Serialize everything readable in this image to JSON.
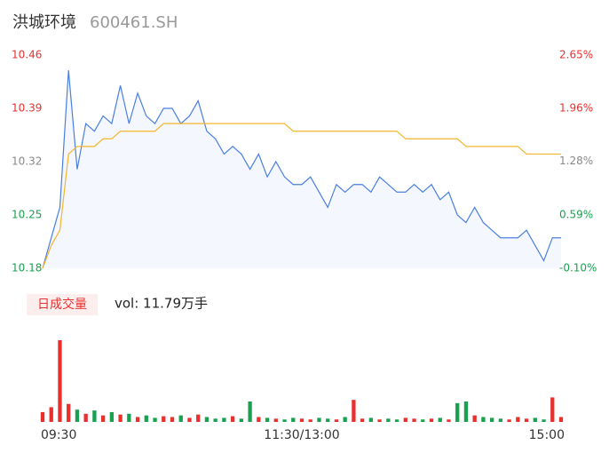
{
  "chart_data": {
    "type": "intraday",
    "title": "洪城环境",
    "subtitle": "600461.SH",
    "volume_label": "日成交量",
    "volume_text": "vol: 11.79万手",
    "x": [
      0,
      4,
      8,
      12,
      16,
      20,
      24,
      28,
      32,
      36,
      40,
      44,
      48,
      52,
      56,
      60,
      64,
      68,
      72,
      76,
      80,
      84,
      88,
      92,
      96,
      100,
      104,
      108,
      112,
      116,
      120,
      124,
      128,
      132,
      136,
      140,
      144,
      148,
      152,
      156,
      160,
      164,
      168,
      172,
      176,
      180,
      184,
      188,
      192,
      196,
      200,
      204,
      208,
      212,
      216,
      220,
      224,
      228,
      232,
      236,
      240
    ],
    "xlim": [
      0,
      240
    ],
    "xticks": [
      {
        "value": 0,
        "label": "09:30"
      },
      {
        "value": 120,
        "label": "11:30/13:00"
      },
      {
        "value": 240,
        "label": "15:00"
      }
    ],
    "ylim": [
      10.18,
      10.46
    ],
    "yticks": [
      10.46,
      10.39,
      10.32,
      10.25,
      10.18
    ],
    "ytick_colors": [
      "#e8312f",
      "#e8312f",
      "#888888",
      "#19a150",
      "#19a150"
    ],
    "y2lim": [
      -0.1,
      2.65
    ],
    "y2ticks": [
      {
        "value": 2.65,
        "label": "2.65%"
      },
      {
        "value": 1.96,
        "label": "1.96%"
      },
      {
        "value": 1.28,
        "label": "1.28%"
      },
      {
        "value": 0.59,
        "label": "0.59%"
      },
      {
        "value": -0.1,
        "label": "-0.10%"
      }
    ],
    "series": [
      {
        "color": "#4a7fe0",
        "fill": "#f4f7fd",
        "values": [
          10.18,
          10.22,
          10.26,
          10.44,
          10.31,
          10.37,
          10.36,
          10.38,
          10.37,
          10.42,
          10.37,
          10.41,
          10.38,
          10.37,
          10.39,
          10.39,
          10.37,
          10.38,
          10.4,
          10.36,
          10.35,
          10.33,
          10.34,
          10.33,
          10.31,
          10.33,
          10.3,
          10.32,
          10.3,
          10.29,
          10.29,
          10.3,
          10.28,
          10.26,
          10.29,
          10.28,
          10.29,
          10.29,
          10.28,
          10.3,
          10.29,
          10.28,
          10.28,
          10.29,
          10.28,
          10.29,
          10.27,
          10.28,
          10.25,
          10.24,
          10.26,
          10.24,
          10.23,
          10.22,
          10.22,
          10.22,
          10.23,
          10.21,
          10.19,
          10.22,
          10.22
        ]
      },
      {
        "color": "#f5b52c",
        "values": [
          10.18,
          10.21,
          10.23,
          10.33,
          10.34,
          10.34,
          10.34,
          10.35,
          10.35,
          10.36,
          10.36,
          10.36,
          10.36,
          10.36,
          10.37,
          10.37,
          10.37,
          10.37,
          10.37,
          10.37,
          10.37,
          10.37,
          10.37,
          10.37,
          10.37,
          10.37,
          10.37,
          10.37,
          10.37,
          10.36,
          10.36,
          10.36,
          10.36,
          10.36,
          10.36,
          10.36,
          10.36,
          10.36,
          10.36,
          10.36,
          10.36,
          10.36,
          10.35,
          10.35,
          10.35,
          10.35,
          10.35,
          10.35,
          10.35,
          10.34,
          10.34,
          10.34,
          10.34,
          10.34,
          10.34,
          10.34,
          10.33,
          10.33,
          10.33,
          10.33,
          10.33
        ]
      }
    ],
    "volume": {
      "up_color": "#e8312f",
      "down_color": "#19a150",
      "values": [
        12,
        18,
        100,
        22,
        15,
        10,
        14,
        8,
        12,
        9,
        10,
        6,
        8,
        5,
        7,
        6,
        8,
        5,
        9,
        6,
        4,
        5,
        7,
        4,
        25,
        6,
        5,
        4,
        3,
        5,
        4,
        3,
        5,
        4,
        3,
        6,
        27,
        4,
        5,
        3,
        4,
        3,
        5,
        4,
        3,
        4,
        5,
        3,
        23,
        25,
        8,
        6,
        5,
        4,
        3,
        6,
        4,
        5,
        3,
        30,
        6
      ]
    }
  }
}
